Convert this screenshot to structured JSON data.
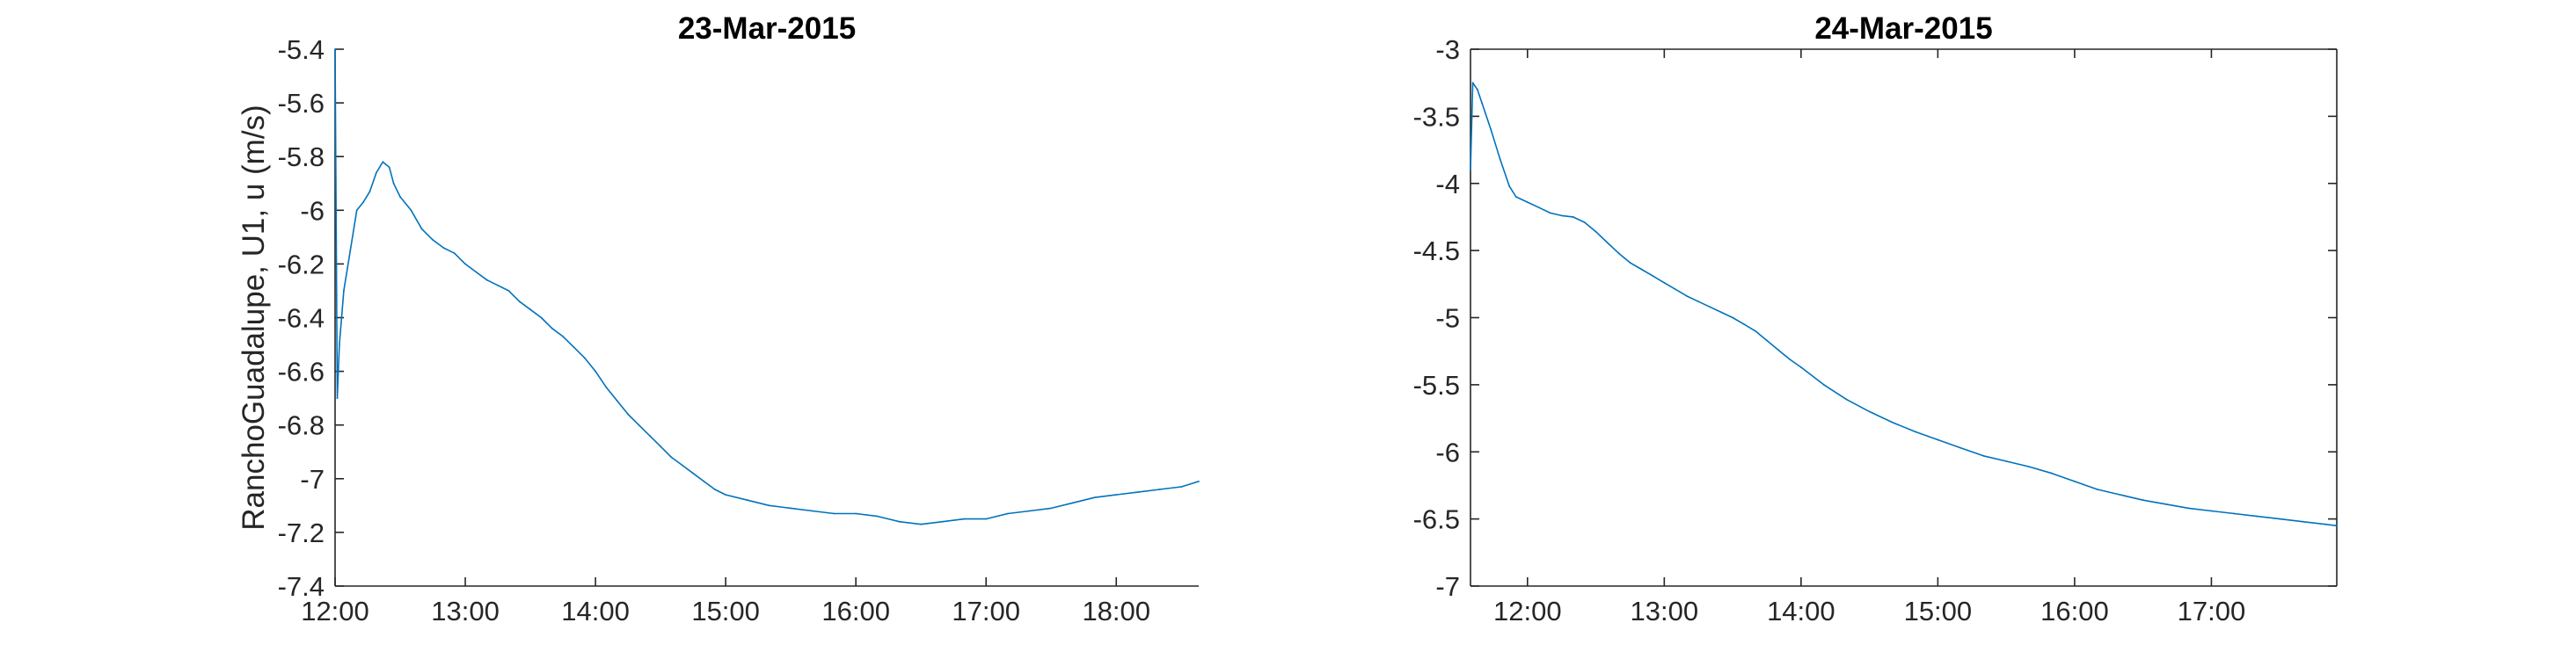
{
  "chart_data": [
    {
      "type": "line",
      "title": "23-Mar-2015",
      "xlabel": "",
      "ylabel": "RanchoGuadalupe, U1, u (m/s)",
      "xlim": [
        "12:00",
        "18:38"
      ],
      "ylim": [
        -7.4,
        -5.4
      ],
      "x_ticks": [
        "12:00",
        "13:00",
        "14:00",
        "15:00",
        "16:00",
        "17:00",
        "18:00"
      ],
      "y_ticks": [
        "-5.4",
        "-5.6",
        "-5.8",
        "-6",
        "-6.2",
        "-6.4",
        "-6.6",
        "-6.8",
        "-7",
        "-7.2",
        "-7.4"
      ],
      "box": false,
      "grid": false,
      "color": "#0072BD",
      "series": [
        {
          "x": [
            "12:00",
            "12:01",
            "12:02",
            "12:04",
            "12:07",
            "12:10",
            "12:13",
            "12:16",
            "12:19",
            "12:22",
            "12:25",
            "12:27",
            "12:30",
            "12:35",
            "12:40",
            "12:45",
            "12:50",
            "12:55",
            "13:00",
            "13:05",
            "13:10",
            "13:15",
            "13:20",
            "13:25",
            "13:30",
            "13:35",
            "13:40",
            "13:45",
            "13:50",
            "13:55",
            "14:00",
            "14:05",
            "14:10",
            "14:15",
            "14:20",
            "14:25",
            "14:30",
            "14:35",
            "14:40",
            "14:45",
            "14:50",
            "14:55",
            "15:00",
            "15:10",
            "15:20",
            "15:30",
            "15:40",
            "15:50",
            "16:00",
            "16:10",
            "16:20",
            "16:30",
            "16:40",
            "16:50",
            "17:00",
            "17:10",
            "17:20",
            "17:30",
            "17:40",
            "17:50",
            "18:00",
            "18:10",
            "18:20",
            "18:30",
            "18:38"
          ],
          "y": [
            -5.4,
            -6.7,
            -6.5,
            -6.3,
            -6.15,
            -6.0,
            -5.97,
            -5.93,
            -5.86,
            -5.82,
            -5.84,
            -5.9,
            -5.95,
            -6.0,
            -6.07,
            -6.11,
            -6.14,
            -6.16,
            -6.2,
            -6.23,
            -6.26,
            -6.28,
            -6.3,
            -6.34,
            -6.37,
            -6.4,
            -6.44,
            -6.47,
            -6.51,
            -6.55,
            -6.6,
            -6.66,
            -6.71,
            -6.76,
            -6.8,
            -6.84,
            -6.88,
            -6.92,
            -6.95,
            -6.98,
            -7.01,
            -7.04,
            -7.06,
            -7.08,
            -7.1,
            -7.11,
            -7.12,
            -7.13,
            -7.13,
            -7.14,
            -7.16,
            -7.17,
            -7.16,
            -7.15,
            -7.15,
            -7.13,
            -7.12,
            -7.11,
            -7.09,
            -7.07,
            -7.06,
            -7.05,
            -7.04,
            -7.03,
            -7.01
          ]
        }
      ]
    },
    {
      "type": "line",
      "title": "24-Mar-2015",
      "xlabel": "",
      "ylabel": "",
      "xlim": [
        "11:35",
        "17:55"
      ],
      "ylim": [
        -7,
        -3
      ],
      "x_ticks": [
        "12:00",
        "13:00",
        "14:00",
        "15:00",
        "16:00",
        "17:00"
      ],
      "y_ticks": [
        "-3",
        "-3.5",
        "-4",
        "-4.5",
        "-5",
        "-5.5",
        "-6",
        "-6.5",
        "-7"
      ],
      "box": true,
      "grid": false,
      "color": "#0072BD",
      "series": [
        {
          "x": [
            "11:35",
            "11:36",
            "11:38",
            "11:40",
            "11:44",
            "11:48",
            "11:52",
            "11:55",
            "12:00",
            "12:05",
            "12:10",
            "12:15",
            "12:20",
            "12:25",
            "12:30",
            "12:35",
            "12:40",
            "12:45",
            "12:50",
            "12:55",
            "13:00",
            "13:05",
            "13:10",
            "13:15",
            "13:20",
            "13:25",
            "13:30",
            "13:35",
            "13:40",
            "13:45",
            "13:50",
            "13:55",
            "14:00",
            "14:10",
            "14:20",
            "14:30",
            "14:40",
            "14:50",
            "15:00",
            "15:10",
            "15:20",
            "15:30",
            "15:40",
            "15:50",
            "16:00",
            "16:10",
            "16:20",
            "16:30",
            "16:40",
            "16:50",
            "17:00",
            "17:10",
            "17:20",
            "17:30",
            "17:40",
            "17:50",
            "17:55"
          ],
          "y": [
            -3.9,
            -3.25,
            -3.3,
            -3.4,
            -3.6,
            -3.82,
            -4.02,
            -4.1,
            -4.14,
            -4.18,
            -4.22,
            -4.24,
            -4.25,
            -4.29,
            -4.36,
            -4.44,
            -4.52,
            -4.59,
            -4.64,
            -4.69,
            -4.74,
            -4.79,
            -4.84,
            -4.88,
            -4.92,
            -4.96,
            -5.0,
            -5.05,
            -5.1,
            -5.17,
            -5.24,
            -5.31,
            -5.37,
            -5.5,
            -5.61,
            -5.7,
            -5.78,
            -5.85,
            -5.91,
            -5.97,
            -6.03,
            -6.07,
            -6.11,
            -6.16,
            -6.22,
            -6.28,
            -6.32,
            -6.36,
            -6.39,
            -6.42,
            -6.44,
            -6.46,
            -6.48,
            -6.5,
            -6.52,
            -6.54,
            -6.55
          ]
        }
      ]
    }
  ]
}
